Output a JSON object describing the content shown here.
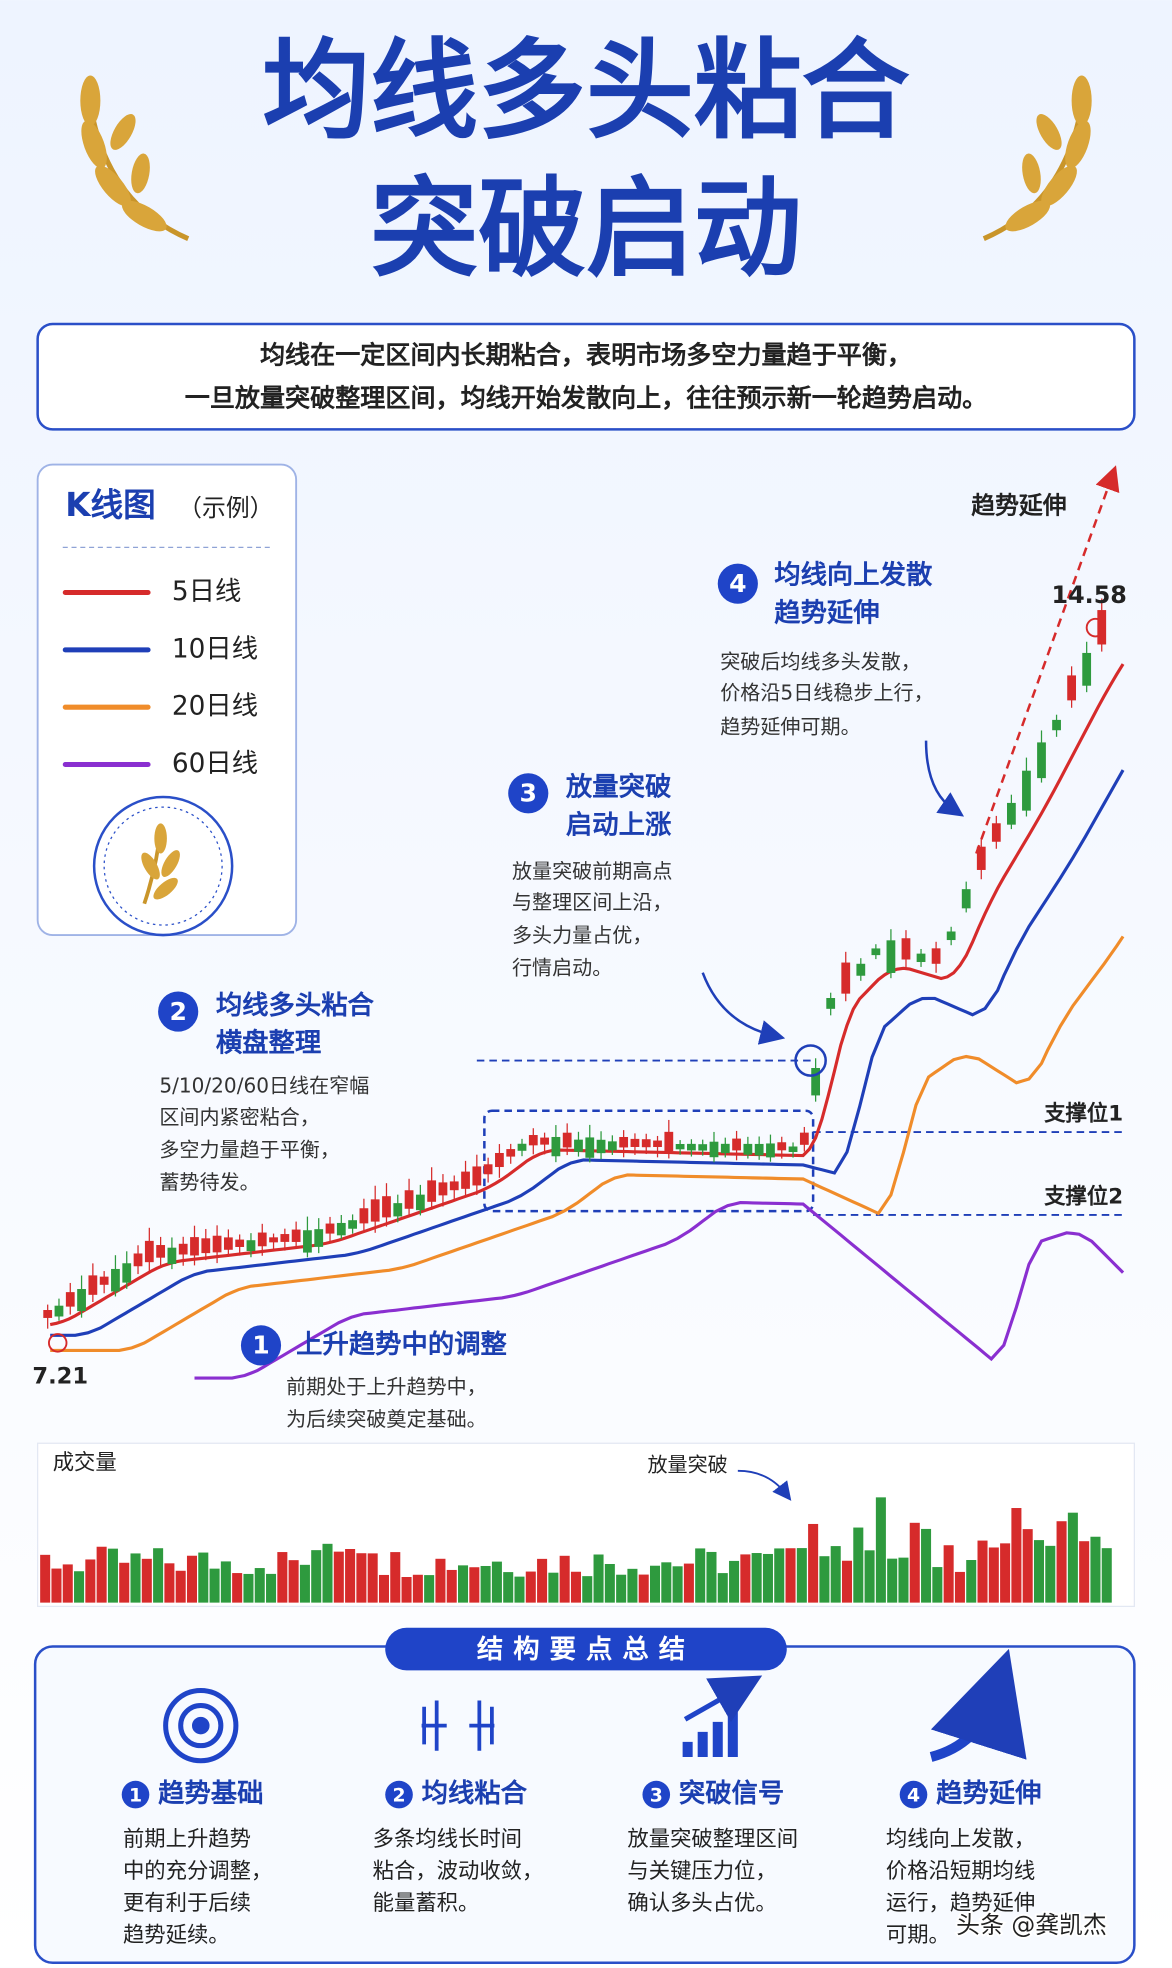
{
  "title": {
    "line1": "均线多头粘合",
    "line2": "突破启动"
  },
  "intro": [
    "均线在一定区间内长期粘合，表明市场多空力量趋于平衡，",
    "一旦放量突破整理区间，均线开始发散向上，往往预示新一轮趋势启动。"
  ],
  "legend": {
    "title": "K线图",
    "subtitle": "（示例）",
    "items": [
      {
        "label": "5日线",
        "color": "#d62b2b"
      },
      {
        "label": "10日线",
        "color": "#1f3fb8"
      },
      {
        "label": "20日线",
        "color": "#f08c2a"
      },
      {
        "label": "60日线",
        "color": "#8a2fd0"
      }
    ]
  },
  "price_labels": {
    "low": "7.21",
    "high": "14.58"
  },
  "annotations": [
    {
      "number": "1",
      "title": [
        "上升趋势中的调整"
      ],
      "text": [
        "前期处于上升趋势中，",
        "为后续突破奠定基础。"
      ]
    },
    {
      "number": "2",
      "title": [
        "均线多头粘合",
        "横盘整理"
      ],
      "text": [
        "5/10/20/60日线在窄幅",
        "区间内紧密粘合，",
        "多空力量趋于平衡，",
        "蓄势待发。"
      ]
    },
    {
      "number": "3",
      "title": [
        "放量突破",
        "启动上涨"
      ],
      "text": [
        "放量突破前期高点",
        "与整理区间上沿，",
        "多头力量占优，",
        "行情启动。"
      ]
    },
    {
      "number": "4",
      "title": [
        "均线向上发散",
        "趋势延伸"
      ],
      "text": [
        "突破后均线多头发散，",
        "价格沿5日线稳步上行，",
        "趋势延伸可期。"
      ]
    }
  ],
  "trend_extension": "趋势延伸",
  "support": [
    "支撑位1",
    "支撑位2"
  ],
  "volume": {
    "title": "成交量",
    "breakout": "放量突破"
  },
  "summary": {
    "title": "结构要点总结",
    "items": [
      {
        "number": "1",
        "title": "趋势基础",
        "text": [
          "前期上升趋势",
          "中的充分调整，",
          "更有利于后续",
          "趋势延续。"
        ]
      },
      {
        "number": "2",
        "title": "均线粘合",
        "text": [
          "多条均线长时间",
          "粘合，波动收敛，",
          "能量蓄积。"
        ]
      },
      {
        "number": "3",
        "title": "突破信号",
        "text": [
          "放量突破整理区间",
          "与关键压力位，",
          "确认多头占优。"
        ]
      },
      {
        "number": "4",
        "title": "趋势延伸",
        "text": [
          "均线向上发散，",
          "价格沿短期均线",
          "运行，趋势延伸",
          "可期。"
        ]
      }
    ]
  },
  "watermark": "头条 @龚凯杰"
}
